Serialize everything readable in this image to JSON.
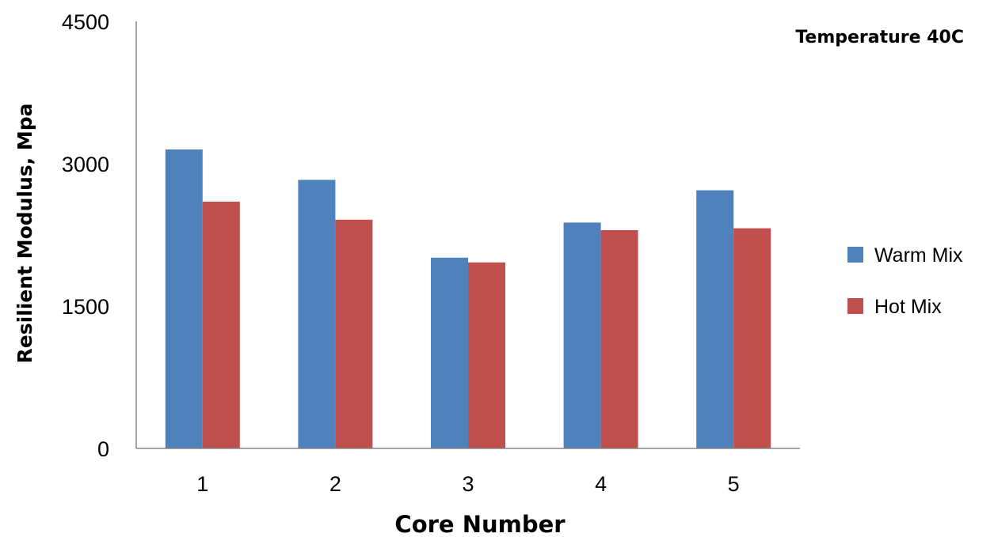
{
  "chart_data": {
    "type": "bar",
    "title": "",
    "annotation": "Temperature 40C",
    "xlabel": "Core Number",
    "ylabel": "Resilient Modulus, Mpa",
    "categories": [
      "1",
      "2",
      "3",
      "4",
      "5"
    ],
    "series": [
      {
        "name": "Warm Mix",
        "color": "#4f81bd",
        "values": [
          3150,
          2830,
          2010,
          2380,
          2720
        ]
      },
      {
        "name": "Hot Mix",
        "color": "#c0504d",
        "values": [
          2600,
          2410,
          1960,
          2300,
          2320
        ]
      }
    ],
    "ylim": [
      0,
      4500
    ],
    "yticks": [
      "0",
      "1500",
      "3000",
      "4500"
    ],
    "grid": false,
    "legend_position": "right"
  }
}
